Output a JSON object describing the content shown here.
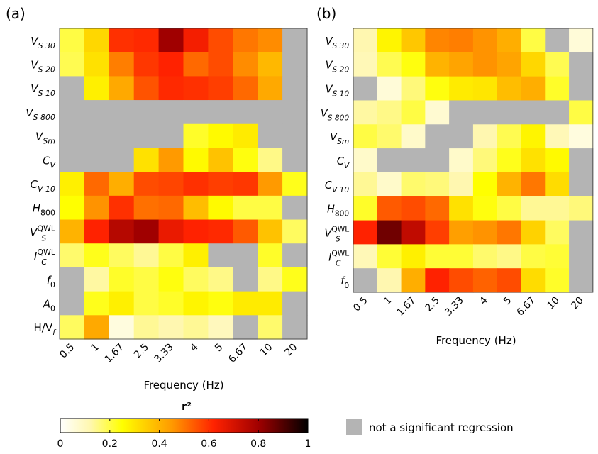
{
  "colors": {
    "nonsig": "#b4b4b4"
  },
  "colorbar": {
    "title": "r²",
    "ticks": [
      "0",
      "0.2",
      "0.4",
      "0.6",
      "0.8",
      "1"
    ],
    "range": [
      0,
      1
    ]
  },
  "legend": {
    "label": "not a significant regression"
  },
  "chart_data": [
    {
      "type": "heatmap",
      "panel_label": "(a)",
      "xlabel": "Frequency (Hz)",
      "x": [
        "0.5",
        "1",
        "1.67",
        "2.5",
        "3.33",
        "4",
        "5",
        "6.67",
        "10",
        "20"
      ],
      "rows": [
        {
          "label": "V",
          "sub": "S 30",
          "sup": ""
        },
        {
          "label": "V",
          "sub": "S 20",
          "sup": ""
        },
        {
          "label": "V",
          "sub": "S 10",
          "sup": ""
        },
        {
          "label": "V",
          "sub": "S 800",
          "sup": ""
        },
        {
          "label": "V",
          "sub": "Sm",
          "sup": ""
        },
        {
          "label": "C",
          "sub": "V",
          "sup": ""
        },
        {
          "label": "C",
          "sub": "V 10",
          "sup": ""
        },
        {
          "label": "H",
          "sub": "800",
          "sup": ""
        },
        {
          "label": "V",
          "sub": "S",
          "sup": "QWL"
        },
        {
          "label": "I",
          "sub": "C",
          "sup": "QWL"
        },
        {
          "label": "f",
          "sub": "0",
          "sup": ""
        },
        {
          "label": "A",
          "sub": "0",
          "sup": ""
        },
        {
          "label": "H/V",
          "sub": "f",
          "sup": ""
        }
      ],
      "values": [
        [
          0.2,
          0.33,
          0.6,
          0.61,
          0.8,
          0.64,
          0.56,
          0.5,
          0.47,
          null
        ],
        [
          0.19,
          0.31,
          0.49,
          0.59,
          0.62,
          0.52,
          0.56,
          0.47,
          0.39,
          null
        ],
        [
          null,
          0.28,
          0.42,
          0.55,
          0.61,
          0.6,
          0.58,
          0.52,
          0.42,
          null
        ],
        [
          null,
          null,
          null,
          null,
          null,
          null,
          null,
          null,
          null,
          null
        ],
        [
          null,
          null,
          null,
          null,
          null,
          0.22,
          0.26,
          0.29,
          null,
          null
        ],
        [
          null,
          null,
          null,
          0.31,
          0.45,
          0.26,
          0.37,
          0.24,
          0.15,
          null
        ],
        [
          0.28,
          0.52,
          0.41,
          0.56,
          0.57,
          0.6,
          0.58,
          0.59,
          0.45,
          0.23
        ],
        [
          0.25,
          0.46,
          0.6,
          0.51,
          0.52,
          0.38,
          0.26,
          0.2,
          0.2,
          null
        ],
        [
          0.4,
          0.62,
          0.76,
          0.8,
          0.66,
          0.62,
          0.61,
          0.54,
          0.37,
          0.18
        ],
        [
          0.17,
          0.23,
          0.18,
          0.14,
          0.2,
          0.28,
          null,
          null,
          0.22,
          null
        ],
        [
          null,
          0.13,
          0.22,
          0.2,
          0.24,
          0.18,
          0.15,
          null,
          0.15,
          0.23
        ],
        [
          null,
          0.23,
          0.28,
          0.2,
          0.22,
          0.27,
          0.24,
          0.29,
          0.29,
          null
        ],
        [
          0.18,
          0.42,
          0.05,
          0.14,
          0.12,
          0.14,
          0.1,
          null,
          0.17,
          null
        ]
      ]
    },
    {
      "type": "heatmap",
      "panel_label": "(b)",
      "xlabel": "Frequency (Hz)",
      "x": [
        "0.5",
        "1",
        "1.67",
        "2.5",
        "3.33",
        "4",
        "5",
        "6.67",
        "10",
        "20"
      ],
      "rows": [
        {
          "label": "V",
          "sub": "S 30",
          "sup": ""
        },
        {
          "label": "V",
          "sub": "S 20",
          "sup": ""
        },
        {
          "label": "V",
          "sub": "S 10",
          "sup": ""
        },
        {
          "label": "V",
          "sub": "S 800",
          "sup": ""
        },
        {
          "label": "V",
          "sub": "Sm",
          "sup": ""
        },
        {
          "label": "C",
          "sub": "V",
          "sup": ""
        },
        {
          "label": "C",
          "sub": "V 10",
          "sup": ""
        },
        {
          "label": "H",
          "sub": "800",
          "sup": ""
        },
        {
          "label": "V",
          "sub": "S",
          "sup": "QWL"
        },
        {
          "label": "I",
          "sub": "C",
          "sup": "QWL"
        },
        {
          "label": "f",
          "sub": "0",
          "sup": ""
        }
      ],
      "values": [
        [
          0.12,
          0.27,
          0.36,
          0.48,
          0.49,
          0.46,
          0.41,
          0.2,
          null,
          0.06
        ],
        [
          0.11,
          0.19,
          0.24,
          0.4,
          0.43,
          0.46,
          0.43,
          0.33,
          0.19,
          null
        ],
        [
          null,
          0.06,
          0.16,
          0.24,
          0.29,
          0.3,
          0.38,
          0.41,
          0.22,
          null
        ],
        [
          0.13,
          0.15,
          0.2,
          0.07,
          null,
          null,
          null,
          null,
          null,
          0.2
        ],
        [
          0.2,
          0.17,
          0.08,
          null,
          null,
          0.12,
          0.19,
          0.27,
          0.11,
          0.05
        ],
        [
          0.08,
          null,
          null,
          null,
          0.08,
          0.16,
          0.23,
          0.31,
          0.26,
          null
        ],
        [
          0.14,
          0.08,
          0.17,
          0.16,
          0.12,
          0.25,
          0.4,
          0.5,
          0.32,
          null
        ],
        [
          0.22,
          0.54,
          0.56,
          0.52,
          0.31,
          0.24,
          0.2,
          0.14,
          0.14,
          0.16
        ],
        [
          0.62,
          0.86,
          0.74,
          0.58,
          0.44,
          0.46,
          0.5,
          0.34,
          0.18,
          null
        ],
        [
          0.11,
          0.21,
          0.28,
          0.21,
          0.21,
          0.17,
          0.15,
          0.2,
          0.21,
          null
        ],
        [
          null,
          0.12,
          0.41,
          0.62,
          0.56,
          0.53,
          0.56,
          0.32,
          0.22,
          null
        ]
      ]
    }
  ]
}
